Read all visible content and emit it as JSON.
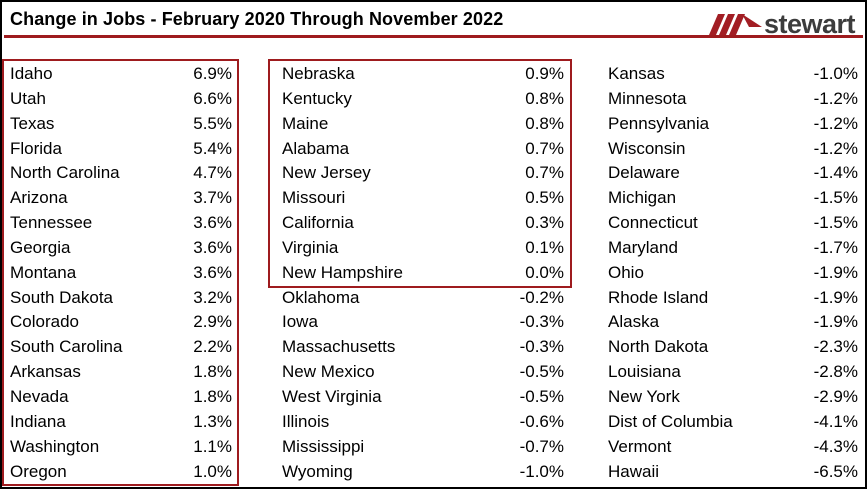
{
  "header": {
    "title_note": "bound from chart_data.title"
  },
  "logo": {
    "wordmark": "stewart"
  },
  "colors": {
    "accent_red": "#9E1B1E",
    "logo_red": "#A21E24",
    "logo_text": "#3C3C3C",
    "text": "#000000"
  },
  "chart_data": {
    "type": "table",
    "title": "Change in Jobs - February 2020 Through November 2022",
    "value_format": "percent",
    "layout": {
      "columns_count": 3,
      "highlight": "dark-red boxes enclose states with job change >= 0.0% (all of column 1, top 9 rows of column 2)"
    },
    "columns": [
      {
        "boxed_rows": 17,
        "rows": [
          {
            "state": "Idaho",
            "value": "6.9%"
          },
          {
            "state": "Utah",
            "value": "6.6%"
          },
          {
            "state": "Texas",
            "value": "5.5%"
          },
          {
            "state": "Florida",
            "value": "5.4%"
          },
          {
            "state": "North Carolina",
            "value": "4.7%"
          },
          {
            "state": "Arizona",
            "value": "3.7%"
          },
          {
            "state": "Tennessee",
            "value": "3.6%"
          },
          {
            "state": "Georgia",
            "value": "3.6%"
          },
          {
            "state": "Montana",
            "value": "3.6%"
          },
          {
            "state": "South Dakota",
            "value": "3.2%"
          },
          {
            "state": "Colorado",
            "value": "2.9%"
          },
          {
            "state": "South Carolina",
            "value": "2.2%"
          },
          {
            "state": "Arkansas",
            "value": "1.8%"
          },
          {
            "state": "Nevada",
            "value": "1.8%"
          },
          {
            "state": "Indiana",
            "value": "1.3%"
          },
          {
            "state": "Washington",
            "value": "1.1%"
          },
          {
            "state": "Oregon",
            "value": "1.0%"
          }
        ]
      },
      {
        "boxed_rows": 9,
        "rows": [
          {
            "state": "Nebraska",
            "value": "0.9%"
          },
          {
            "state": "Kentucky",
            "value": "0.8%"
          },
          {
            "state": "Maine",
            "value": "0.8%"
          },
          {
            "state": "Alabama",
            "value": "0.7%"
          },
          {
            "state": "New Jersey",
            "value": "0.7%"
          },
          {
            "state": "Missouri",
            "value": "0.5%"
          },
          {
            "state": "California",
            "value": "0.3%"
          },
          {
            "state": "Virginia",
            "value": "0.1%"
          },
          {
            "state": "New Hampshire",
            "value": "0.0%"
          },
          {
            "state": "Oklahoma",
            "value": "-0.2%"
          },
          {
            "state": "Iowa",
            "value": "-0.3%"
          },
          {
            "state": "Massachusetts",
            "value": "-0.3%"
          },
          {
            "state": "New Mexico",
            "value": "-0.5%"
          },
          {
            "state": "West Virginia",
            "value": "-0.5%"
          },
          {
            "state": "Illinois",
            "value": "-0.6%"
          },
          {
            "state": "Mississippi",
            "value": "-0.7%"
          },
          {
            "state": "Wyoming",
            "value": "-1.0%"
          }
        ]
      },
      {
        "boxed_rows": 0,
        "rows": [
          {
            "state": "Kansas",
            "value": "-1.0%"
          },
          {
            "state": "Minnesota",
            "value": "-1.2%"
          },
          {
            "state": "Pennsylvania",
            "value": "-1.2%"
          },
          {
            "state": "Wisconsin",
            "value": "-1.2%"
          },
          {
            "state": "Delaware",
            "value": "-1.4%"
          },
          {
            "state": "Michigan",
            "value": "-1.5%"
          },
          {
            "state": "Connecticut",
            "value": "-1.5%"
          },
          {
            "state": "Maryland",
            "value": "-1.7%"
          },
          {
            "state": "Ohio",
            "value": "-1.9%"
          },
          {
            "state": "Rhode Island",
            "value": "-1.9%"
          },
          {
            "state": "Alaska",
            "value": "-1.9%"
          },
          {
            "state": "North Dakota",
            "value": "-2.3%"
          },
          {
            "state": "Louisiana",
            "value": "-2.8%"
          },
          {
            "state": "New York",
            "value": "-2.9%"
          },
          {
            "state": "Dist of Columbia",
            "value": "-4.1%"
          },
          {
            "state": "Vermont",
            "value": "-4.3%"
          },
          {
            "state": "Hawaii",
            "value": "-6.5%"
          }
        ]
      }
    ]
  }
}
